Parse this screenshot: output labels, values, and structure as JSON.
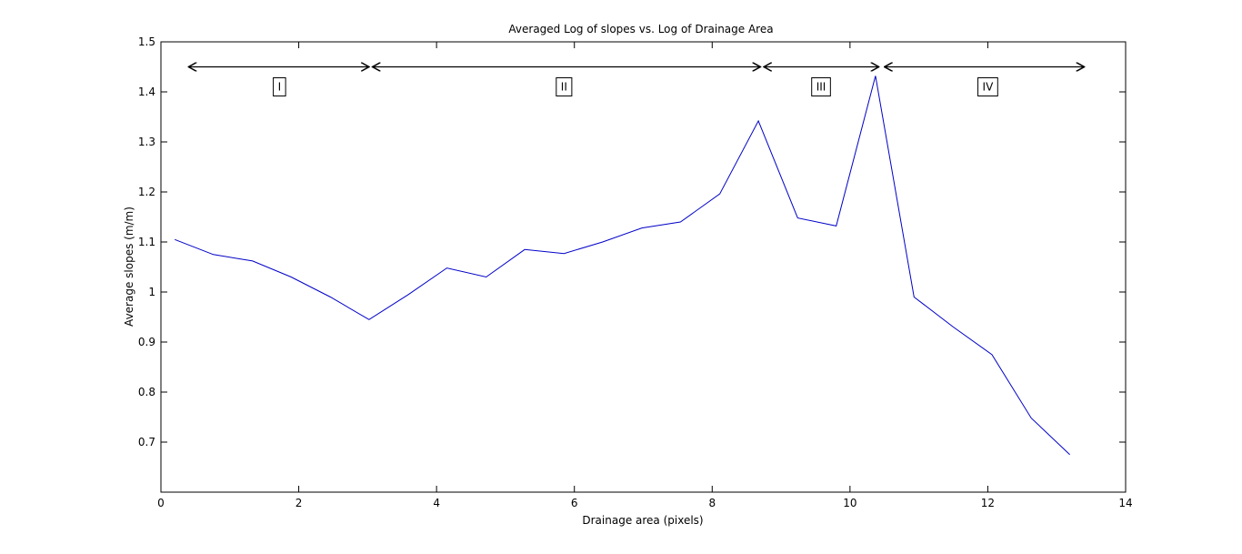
{
  "chart_data": {
    "type": "line",
    "title": "Averaged Log of slopes vs. Log of Drainage Area",
    "xlabel": "Drainage area (pixels)",
    "ylabel": "Average slopes (m/m)",
    "xlim": [
      0,
      14
    ],
    "ylim": [
      0.6,
      1.5
    ],
    "xticks": [
      0,
      2,
      4,
      6,
      8,
      10,
      12,
      14
    ],
    "yticks": [
      0.7,
      0.8,
      0.9,
      1.0,
      1.1,
      1.2,
      1.3,
      1.4,
      1.5
    ],
    "ytick_labels": [
      "0.7",
      "0.8",
      "0.9",
      "1",
      "1.1",
      "1.2",
      "1.3",
      "1.4",
      "1.5"
    ],
    "grid": false,
    "series": [
      {
        "color": "#0000c8",
        "x": [
          0.2,
          0.76,
          1.33,
          1.89,
          2.46,
          3.02,
          3.59,
          4.15,
          4.72,
          5.28,
          5.85,
          6.41,
          6.98,
          7.54,
          8.11,
          8.67,
          9.24,
          9.8,
          10.37,
          10.93,
          11.5,
          12.06,
          12.63,
          13.19
        ],
        "y": [
          1.105,
          1.075,
          1.062,
          1.03,
          0.99,
          0.945,
          0.995,
          1.048,
          1.03,
          1.085,
          1.077,
          1.1,
          1.128,
          1.14,
          1.196,
          1.342,
          1.148,
          1.132,
          1.432,
          0.99,
          0.93,
          0.875,
          0.748,
          0.675
        ]
      }
    ],
    "annotations": [
      {
        "label": "I",
        "from": 0.4,
        "to": 3.02,
        "y": 1.45,
        "label_x": 1.72,
        "label_y": 1.41
      },
      {
        "label": "II",
        "from": 3.07,
        "to": 8.7,
        "y": 1.45,
        "label_x": 5.85,
        "label_y": 1.41
      },
      {
        "label": "III",
        "from": 8.75,
        "to": 10.42,
        "y": 1.45,
        "label_x": 9.58,
        "label_y": 1.41
      },
      {
        "label": "IV",
        "from": 10.5,
        "to": 13.4,
        "y": 1.45,
        "label_x": 12.0,
        "label_y": 1.41
      }
    ]
  }
}
